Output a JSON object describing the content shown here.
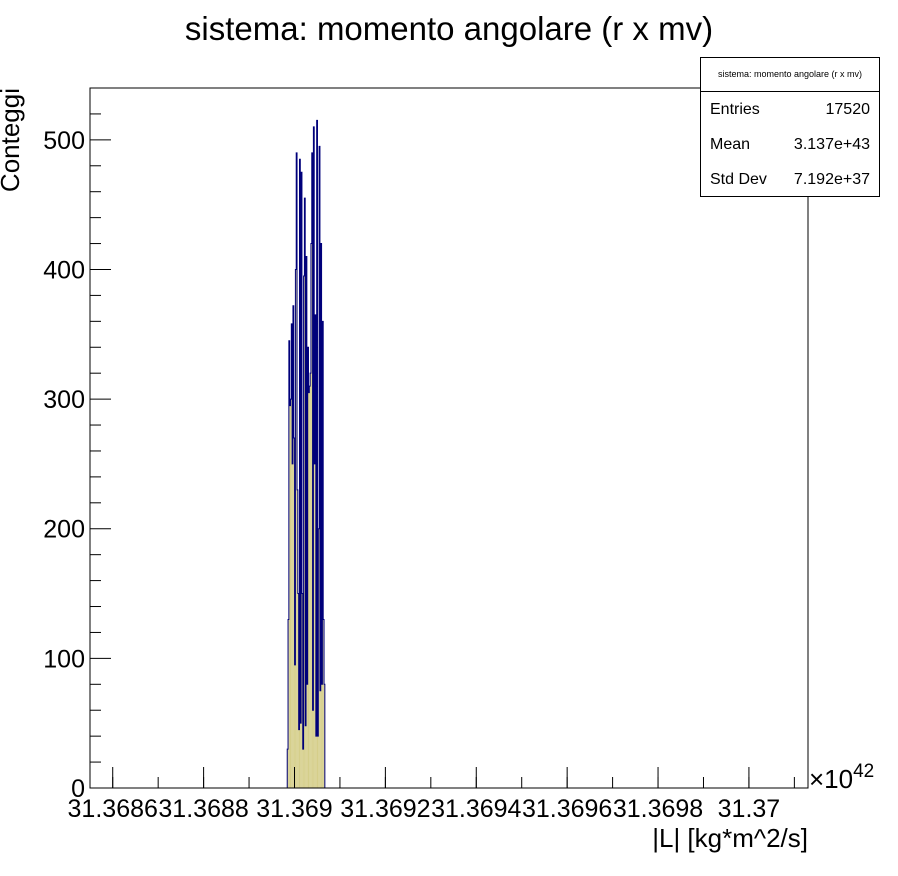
{
  "chart_data": {
    "type": "bar",
    "title": "sistema: momento angolare (r x mv)",
    "xlabel": "|L| [kg*m^2/s]",
    "ylabel": "Conteggi",
    "x_exponent_label": "×10",
    "x_exponent_power": "42",
    "xlim": [
      31.36855,
      31.37013
    ],
    "ylim": [
      0,
      540
    ],
    "x_ticks": [
      31.3686,
      31.3688,
      31.369,
      31.3692,
      31.3694,
      31.3696,
      31.3698,
      31.37
    ],
    "x_tick_labels": [
      "31.3686",
      "31.3688",
      "31.369",
      "31.3692",
      "31.3694",
      "31.3696",
      "31.3698",
      "31.37"
    ],
    "y_ticks": [
      0,
      100,
      200,
      300,
      400,
      500
    ],
    "y_tick_labels": [
      "0",
      "100",
      "200",
      "300",
      "400",
      "500"
    ],
    "bins": {
      "start": 31.368984,
      "width": 1.8e-06,
      "values": [
        30,
        130,
        345,
        295,
        300,
        358,
        250,
        372,
        270,
        95,
        400,
        490,
        230,
        150,
        45,
        485,
        50,
        475,
        150,
        30,
        395,
        455,
        48,
        410,
        80,
        340,
        305,
        310,
        320,
        420,
        490,
        60,
        510,
        250,
        365,
        40,
        515,
        40,
        200,
        495,
        75,
        420,
        80,
        360,
        130,
        80
      ]
    },
    "fill_color": "#d5ce8a",
    "line_color": "#00007a",
    "grid": false,
    "legend": "none"
  },
  "stats": {
    "title": "sistema: momento angolare (r x mv)",
    "rows": [
      {
        "label": "Entries",
        "value": "17520"
      },
      {
        "label": "Mean",
        "value": "3.137e+43"
      },
      {
        "label": "Std Dev",
        "value": "7.192e+37"
      }
    ]
  }
}
